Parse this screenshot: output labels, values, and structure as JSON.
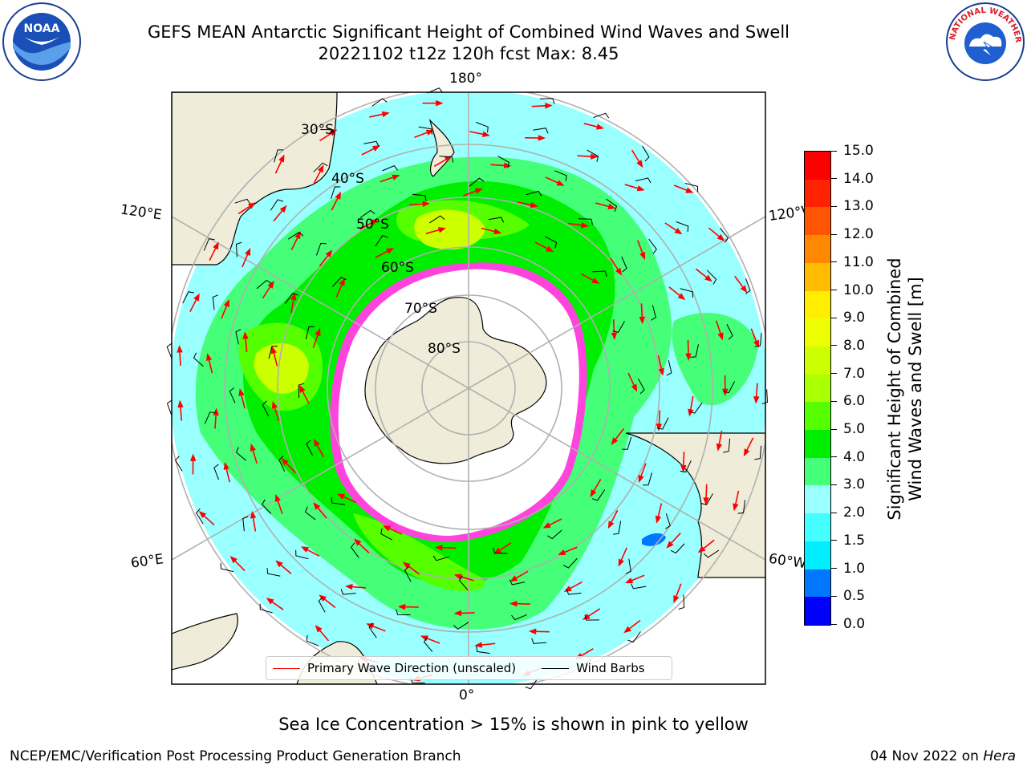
{
  "title": {
    "line1": "GEFS MEAN Antarctic Significant Height of Combined Wind Waves and Swell",
    "line2": "20221102 t12z 120h fcst   Max: 8.45"
  },
  "logos": {
    "left": {
      "icon": "noaa-logo",
      "text": "NOAA"
    },
    "right": {
      "icon": "nws-logo",
      "text": "NATIONAL WEATHER SERVICE"
    }
  },
  "map": {
    "projection": "south-polar-stereographic",
    "longitude_labels": {
      "top": "180°",
      "bottom": "0°",
      "upper_left": "120°E",
      "upper_right": "120°W",
      "lower_left": "60°E",
      "lower_right": "60°W"
    },
    "latitude_labels": [
      "30°S",
      "40°S",
      "50°S",
      "60°S",
      "70°S",
      "80°S"
    ],
    "colors": {
      "land": "#efedd9",
      "sea_ice": "#ffffff",
      "ice_edge": "#ff44dd",
      "grid": "#b0b0b0",
      "wave_arrow": "#ff0000",
      "wind_barb": "#000000"
    }
  },
  "legend": {
    "primary_wave_direction": "Primary Wave Direction (unscaled)",
    "wind_barbs": "Wind Barbs"
  },
  "colorbar": {
    "label_line1": "Significant Height of Combined",
    "label_line2": "Wind Waves and Swell [m]",
    "ticks": [
      "0.0",
      "0.5",
      "1.0",
      "1.5",
      "2.0",
      "3.0",
      "4.0",
      "5.0",
      "6.0",
      "7.0",
      "8.0",
      "9.0",
      "10.0",
      "11.0",
      "12.0",
      "13.0",
      "14.0",
      "15.0"
    ],
    "colors": [
      "#0000ff",
      "#0077ff",
      "#00eeff",
      "#44ffff",
      "#99ffff",
      "#44ff77",
      "#00ee00",
      "#55ff00",
      "#aaff00",
      "#ccff00",
      "#eeff00",
      "#ffee00",
      "#ffbb00",
      "#ff8800",
      "#ff5500",
      "#ff2200",
      "#ff0000"
    ]
  },
  "notes": {
    "sea_ice": "Sea Ice Concentration > 15% is shown in pink to yellow"
  },
  "footer": {
    "left": "NCEP/EMC/Verification Post Processing Product Generation Branch",
    "date": "04 Nov 2022 on ",
    "machine": "Hera"
  }
}
